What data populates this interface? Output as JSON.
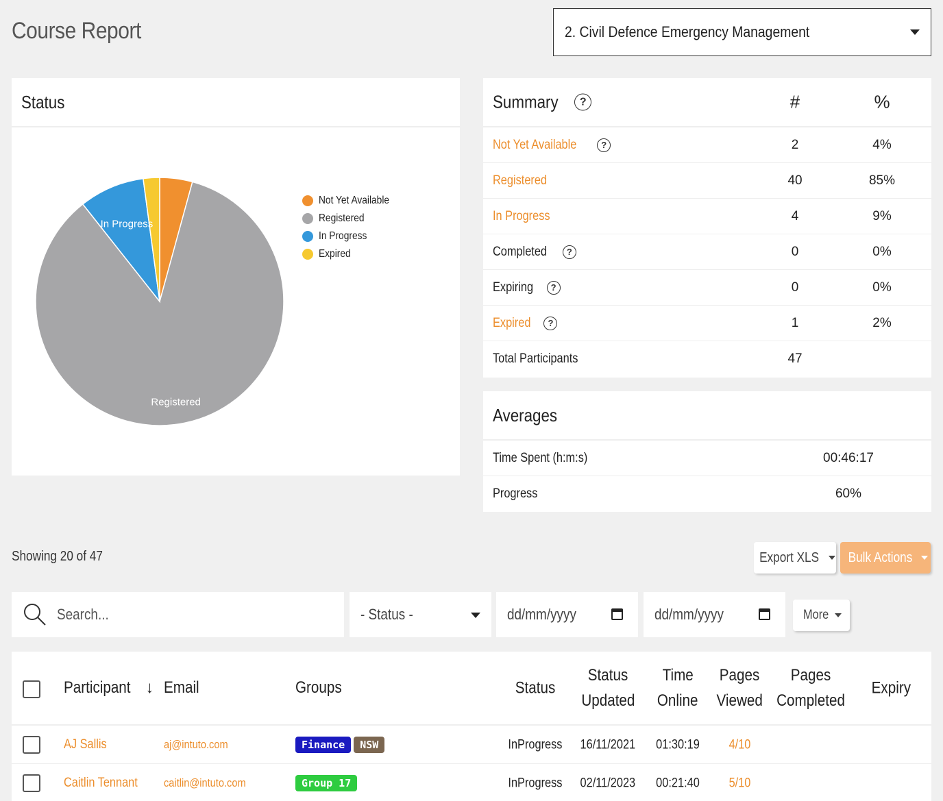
{
  "header": {
    "title": "Course Report",
    "course_selected": "2. Civil Defence Emergency Management"
  },
  "status_card": {
    "title": "Status",
    "legend": [
      {
        "label": "Not Yet Available",
        "color": "#f0902f"
      },
      {
        "label": "Registered",
        "color": "#a6a6a8"
      },
      {
        "label": "In Progress",
        "color": "#3498db"
      },
      {
        "label": "Expired",
        "color": "#f6c930"
      }
    ],
    "slice_labels": {
      "in_progress": "In Progress",
      "registered": "Registered"
    }
  },
  "chart_data": {
    "type": "pie",
    "categories": [
      "Not Yet Available",
      "Registered",
      "In Progress",
      "Expired"
    ],
    "values": [
      2,
      40,
      4,
      1
    ],
    "colors": [
      "#f0902f",
      "#a6a6a8",
      "#3498db",
      "#f6c930"
    ]
  },
  "summary": {
    "title": "Summary",
    "col_count": "#",
    "col_pct": "%",
    "rows": [
      {
        "label": "Not Yet Available",
        "count": "2",
        "pct": "4%"
      },
      {
        "label": "Registered",
        "count": "40",
        "pct": "85%"
      },
      {
        "label": "In Progress",
        "count": "4",
        "pct": "9%"
      },
      {
        "label": "Completed",
        "count": "0",
        "pct": "0%"
      },
      {
        "label": "Expiring",
        "count": "0",
        "pct": "0%"
      },
      {
        "label": "Expired",
        "count": "1",
        "pct": "2%"
      },
      {
        "label": "Total Participants",
        "count": "47",
        "pct": ""
      }
    ]
  },
  "averages": {
    "title": "Averages",
    "rows": [
      {
        "label": "Time Spent (h:m:s)",
        "value": "00:46:17"
      },
      {
        "label": "Progress",
        "value": "60%"
      }
    ]
  },
  "toolbar": {
    "showing": "Showing 20 of 47",
    "export_label": "Export XLS",
    "bulk_label": "Bulk Actions",
    "more_label": "More"
  },
  "filters": {
    "search_placeholder": "Search...",
    "status_placeholder": "- Status -",
    "date_from": "dd/mm/yyyy",
    "date_to": "dd/mm/yyyy"
  },
  "table": {
    "headers": {
      "participant": "Participant",
      "email": "Email",
      "groups": "Groups",
      "status": "Status",
      "status_updated_1": "Status",
      "status_updated_2": "Updated",
      "time_online_1": "Time",
      "time_online_2": "Online",
      "pages_viewed_1": "Pages",
      "pages_viewed_2": "Viewed",
      "pages_completed_1": "Pages",
      "pages_completed_2": "Completed",
      "expiry": "Expiry"
    },
    "rows": [
      {
        "name": "AJ Sallis",
        "email": "aj@intuto.com",
        "groups": [
          {
            "label": "Finance",
            "color": "#1a1ac0"
          },
          {
            "label": "NSW",
            "color": "#7b6650"
          }
        ],
        "status": "InProgress",
        "updated": "16/11/2021",
        "time": "01:30:19",
        "viewed": "4/10",
        "completed": "",
        "expiry": ""
      },
      {
        "name": "Caitlin Tennant",
        "email": "caitlin@intuto.com",
        "groups": [
          {
            "label": "Group 17",
            "color": "#2ecc40"
          }
        ],
        "status": "InProgress",
        "updated": "02/11/2023",
        "time": "00:21:40",
        "viewed": "5/10",
        "completed": "",
        "expiry": ""
      }
    ]
  }
}
